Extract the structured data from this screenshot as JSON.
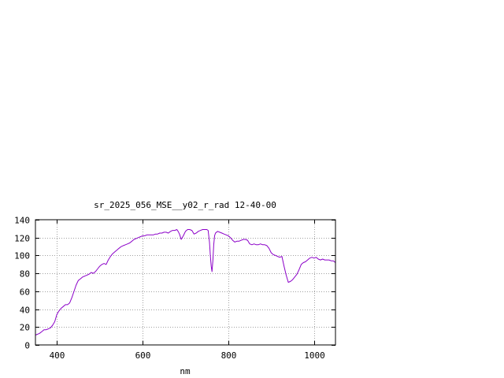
{
  "chart_data": {
    "type": "line",
    "title": "sr_2025_056_MSE__y02_r_rad 12-40-00",
    "xlabel": "nm",
    "ylabel": "",
    "xlim": [
      350,
      1050
    ],
    "ylim": [
      0,
      140
    ],
    "x_ticks": [
      400,
      600,
      800,
      1000
    ],
    "y_ticks": [
      0,
      20,
      40,
      60,
      80,
      100,
      120,
      140
    ],
    "grid": true,
    "legend": "none",
    "series": [
      {
        "color": "#8b00c8",
        "x": [
          350,
          355,
          360,
          365,
          370,
          375,
          380,
          385,
          390,
          395,
          400,
          405,
          410,
          415,
          420,
          425,
          430,
          435,
          440,
          445,
          450,
          455,
          460,
          465,
          470,
          475,
          480,
          485,
          490,
          495,
          500,
          505,
          510,
          515,
          520,
          525,
          530,
          535,
          540,
          545,
          550,
          555,
          560,
          565,
          570,
          575,
          580,
          585,
          590,
          595,
          600,
          605,
          610,
          615,
          620,
          625,
          630,
          635,
          640,
          645,
          650,
          655,
          660,
          665,
          670,
          675,
          680,
          683,
          686,
          690,
          695,
          700,
          705,
          710,
          715,
          720,
          725,
          730,
          735,
          740,
          745,
          750,
          753,
          756,
          758,
          760,
          762,
          764,
          766,
          768,
          770,
          775,
          780,
          785,
          790,
          795,
          800,
          805,
          810,
          815,
          820,
          825,
          830,
          835,
          840,
          845,
          850,
          855,
          860,
          865,
          870,
          875,
          880,
          885,
          890,
          895,
          900,
          905,
          910,
          915,
          920,
          925,
          930,
          935,
          940,
          945,
          950,
          955,
          960,
          965,
          970,
          975,
          980,
          985,
          990,
          995,
          1000,
          1005,
          1010,
          1015,
          1020,
          1025,
          1030,
          1035,
          1040,
          1045,
          1050
        ],
        "y": [
          11,
          12,
          13,
          15,
          17,
          17,
          18,
          19,
          22,
          26,
          34,
          38,
          41,
          43,
          45,
          45,
          47,
          53,
          60,
          67,
          72,
          74,
          76,
          77,
          78,
          79,
          81,
          80,
          82,
          85,
          88,
          90,
          91,
          90,
          95,
          99,
          102,
          104,
          106,
          108,
          110,
          111,
          112,
          113,
          114,
          116,
          118,
          119,
          120,
          121,
          122,
          122,
          123,
          123,
          123,
          123,
          124,
          124,
          125,
          125,
          126,
          126,
          125,
          127,
          128,
          128,
          129,
          127,
          124,
          118,
          122,
          127,
          129,
          129,
          128,
          124,
          125,
          127,
          128,
          129,
          129,
          129,
          128,
          115,
          100,
          88,
          82,
          94,
          112,
          122,
          125,
          127,
          126,
          125,
          124,
          123,
          122,
          120,
          117,
          115,
          116,
          116,
          117,
          118,
          118,
          117,
          113,
          112,
          113,
          112,
          112,
          113,
          112,
          112,
          111,
          108,
          103,
          101,
          100,
          99,
          98,
          99,
          88,
          78,
          70,
          71,
          73,
          76,
          79,
          84,
          90,
          92,
          93,
          95,
          97,
          98,
          97,
          98,
          96,
          95,
          96,
          95,
          95,
          95,
          94,
          94,
          92
        ]
      }
    ]
  }
}
